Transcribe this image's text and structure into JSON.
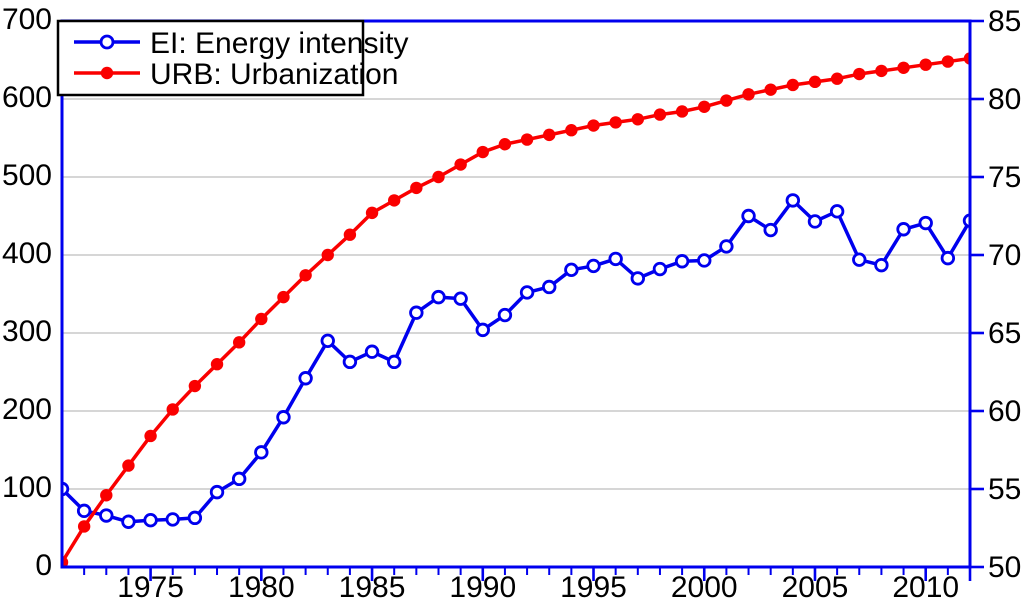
{
  "chart_data": {
    "type": "line",
    "title": "",
    "xlabel": "",
    "ylabel_left": "",
    "ylabel_right": "",
    "grid": "horizontal-only",
    "legend_position": "top-left",
    "x": [
      1971,
      1972,
      1973,
      1974,
      1975,
      1976,
      1977,
      1978,
      1979,
      1980,
      1981,
      1982,
      1983,
      1984,
      1985,
      1986,
      1987,
      1988,
      1989,
      1990,
      1991,
      1992,
      1993,
      1994,
      1995,
      1996,
      1997,
      1998,
      1999,
      2000,
      2001,
      2002,
      2003,
      2004,
      2005,
      2006,
      2007,
      2008,
      2009,
      2010,
      2011,
      2012
    ],
    "series": [
      {
        "name": "EI: Energy intensity",
        "axis": "left",
        "color": "#0000ee",
        "marker": "open-circle",
        "values": [
          100,
          72,
          66,
          58,
          60,
          61,
          63,
          96,
          113,
          147,
          192,
          242,
          290,
          263,
          276,
          263,
          326,
          346,
          344,
          304,
          323,
          352,
          359,
          381,
          386,
          395,
          370,
          382,
          392,
          393,
          411,
          450,
          432,
          470,
          443,
          456,
          394,
          387,
          433,
          441,
          396,
          444
        ]
      },
      {
        "name": "URB: Urbanization",
        "axis": "right",
        "color": "#fa0000",
        "marker": "filled-circle",
        "values": [
          50.3,
          52.6,
          54.6,
          56.5,
          58.4,
          60.1,
          61.6,
          63.0,
          64.4,
          65.9,
          67.3,
          68.7,
          70.0,
          71.3,
          72.7,
          73.5,
          74.3,
          75.0,
          75.8,
          76.6,
          77.1,
          77.4,
          77.7,
          78.0,
          78.3,
          78.5,
          78.7,
          79.0,
          79.2,
          79.5,
          79.9,
          80.3,
          80.6,
          80.9,
          81.1,
          81.3,
          81.6,
          81.8,
          82.0,
          82.2,
          82.4,
          82.6
        ]
      }
    ],
    "left_axis": {
      "min": 0,
      "max": 700,
      "ticks": [
        0,
        100,
        200,
        300,
        400,
        500,
        600,
        700
      ]
    },
    "right_axis": {
      "min": 50,
      "max": 85,
      "ticks": [
        50,
        55,
        60,
        65,
        70,
        75,
        80,
        85
      ]
    },
    "x_axis": {
      "min": 1971,
      "max": 2012,
      "major_ticks": [
        1975,
        1980,
        1985,
        1990,
        1995,
        2000,
        2005,
        2010
      ],
      "minor_tick_interval": 1,
      "extra_major_ticks": [
        2012
      ]
    },
    "colors": {
      "axis_frame": "#0000ee",
      "gridline": "#c9c9c9",
      "text": "#000000",
      "background": "#ffffff",
      "legend_border": "#000000",
      "legend_fill": "#ffffff"
    }
  }
}
